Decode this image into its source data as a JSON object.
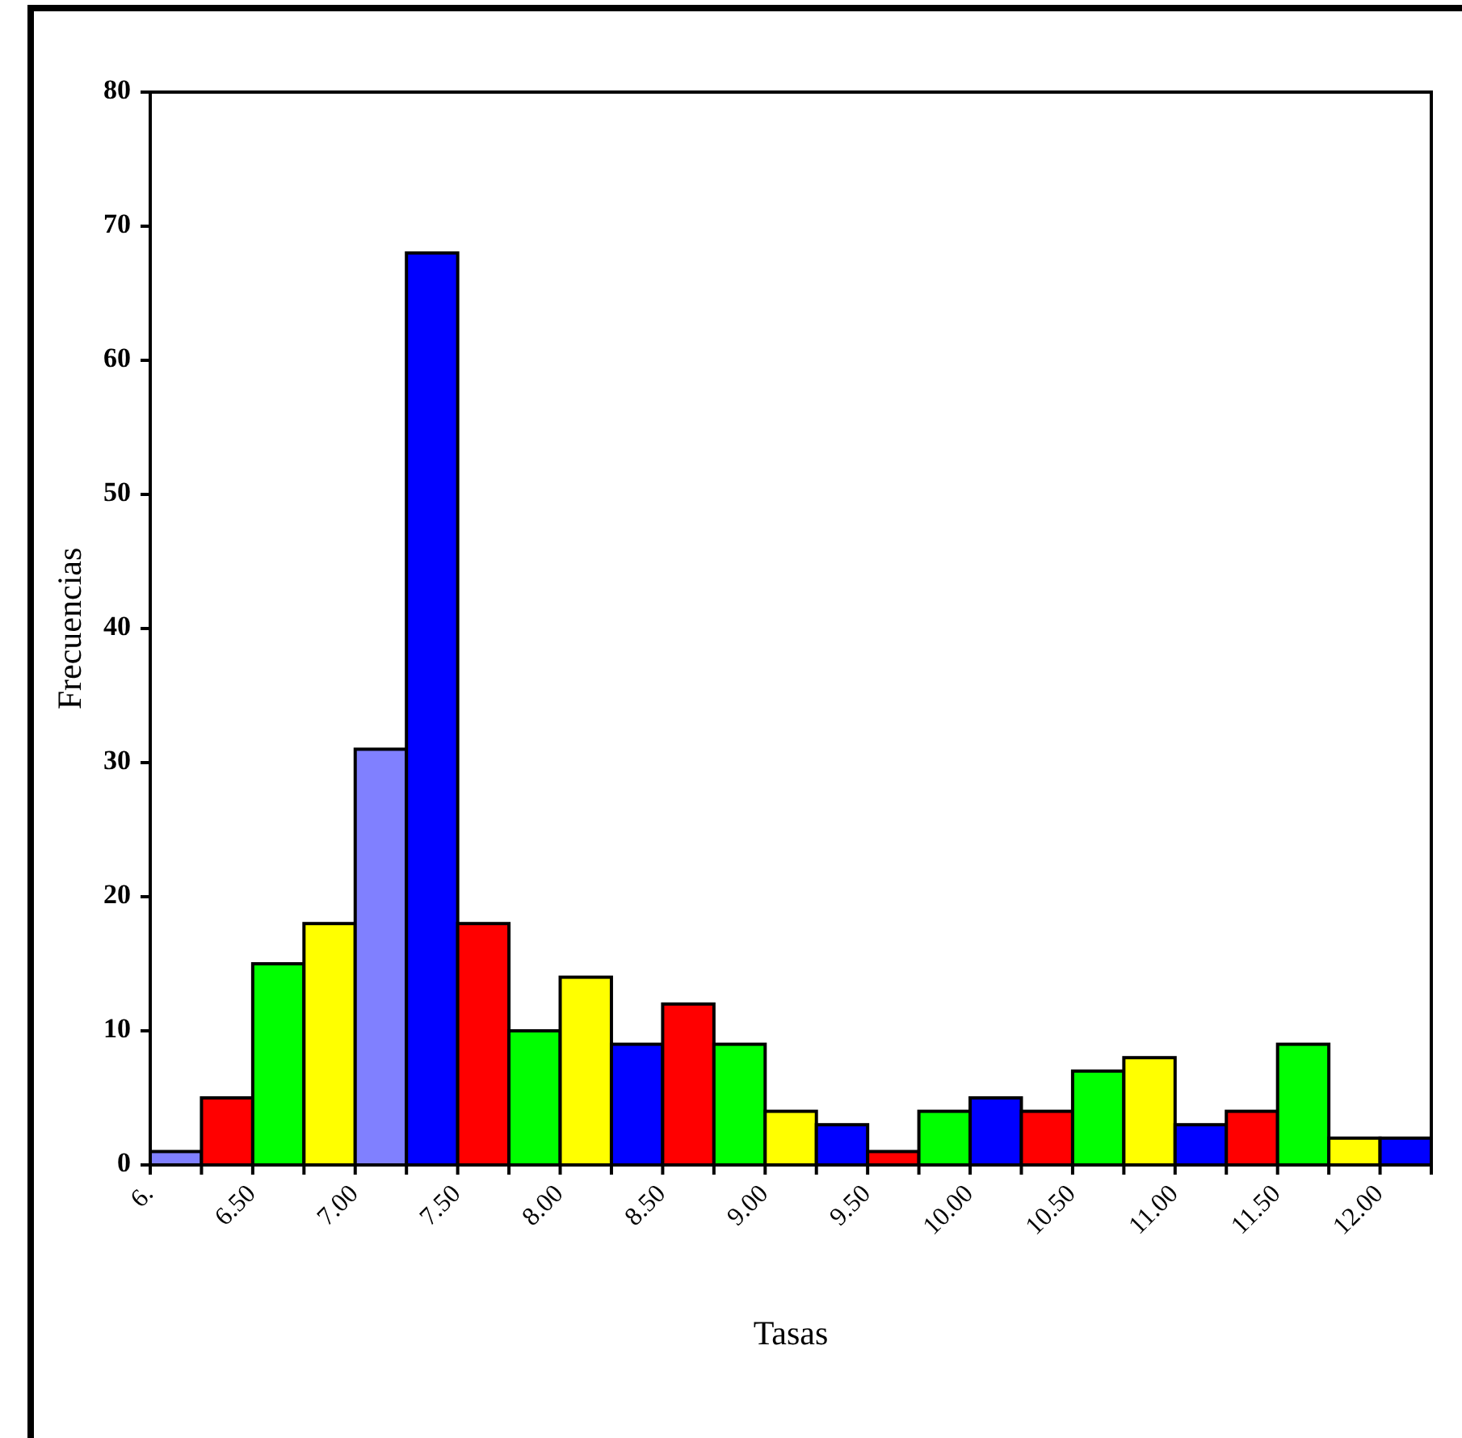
{
  "chart_data": {
    "type": "histogram",
    "xlabel": "Tasas",
    "ylabel": "Frecuencias",
    "bins": [
      6,
      6.25,
      6.5,
      6.75,
      7,
      7.25,
      7.5,
      7.75,
      8,
      8.25,
      8.5,
      8.75,
      9,
      9.25,
      9.5,
      9.75,
      10,
      10.25,
      10.5,
      10.75,
      11,
      11.25,
      11.5,
      11.75,
      12,
      12.25
    ],
    "values": [
      1,
      5,
      15,
      18,
      31,
      68,
      18,
      10,
      14,
      9,
      12,
      9,
      4,
      3,
      1,
      4,
      5,
      4,
      7,
      8,
      3,
      4,
      9,
      2,
      2
    ],
    "colors": [
      "#8080ff",
      "#ff0000",
      "#00ff00",
      "#ffff00",
      "#8080ff",
      "#0000ff",
      "#ff0000",
      "#00ff00",
      "#ffff00",
      "#0000ff",
      "#ff0000",
      "#00ff00",
      "#ffff00",
      "#0000ff",
      "#ff0000",
      "#00ff00",
      "#0000ff",
      "#ff0000",
      "#00ff00",
      "#ffff00",
      "#0000ff",
      "#ff0000",
      "#00ff00",
      "#ffff00",
      "#0000ff"
    ],
    "xlim": [
      6,
      12.25
    ],
    "xticks": [
      {
        "value": 6,
        "label": "6."
      },
      {
        "value": 6.25,
        "label": null
      },
      {
        "value": 6.5,
        "label": "6.50"
      },
      {
        "value": 6.75,
        "label": null
      },
      {
        "value": 7,
        "label": "7.00"
      },
      {
        "value": 7.25,
        "label": null
      },
      {
        "value": 7.5,
        "label": "7.50"
      },
      {
        "value": 7.75,
        "label": null
      },
      {
        "value": 8,
        "label": "8.00"
      },
      {
        "value": 8.25,
        "label": null
      },
      {
        "value": 8.5,
        "label": "8.50"
      },
      {
        "value": 8.75,
        "label": null
      },
      {
        "value": 9,
        "label": "9.00"
      },
      {
        "value": 9.25,
        "label": null
      },
      {
        "value": 9.5,
        "label": "9.50"
      },
      {
        "value": 9.75,
        "label": null
      },
      {
        "value": 10,
        "label": "10.00"
      },
      {
        "value": 10.25,
        "label": null
      },
      {
        "value": 10.5,
        "label": "10.50"
      },
      {
        "value": 10.75,
        "label": null
      },
      {
        "value": 11,
        "label": "11.00"
      },
      {
        "value": 11.25,
        "label": null
      },
      {
        "value": 11.5,
        "label": "11.50"
      },
      {
        "value": 11.75,
        "label": null
      },
      {
        "value": 12,
        "label": "12.00"
      },
      {
        "value": 12.25,
        "label": null
      }
    ],
    "ylim": [
      0,
      80
    ],
    "yticks": [
      0,
      10,
      20,
      30,
      40,
      50,
      60,
      70,
      80
    ],
    "grid": false
  }
}
